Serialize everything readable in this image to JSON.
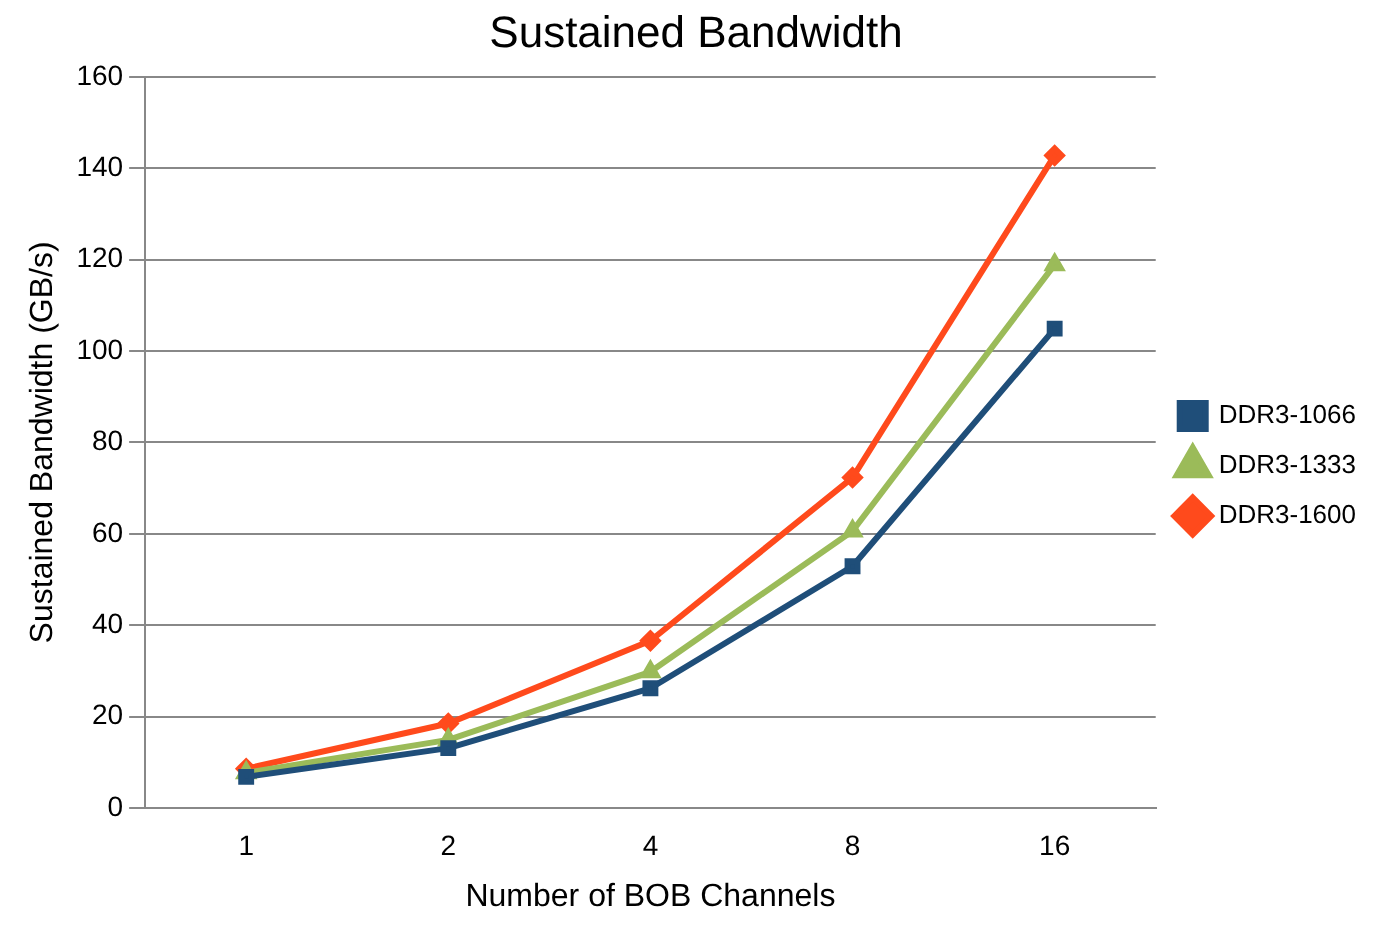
{
  "chart_data": {
    "type": "line",
    "title": "Sustained Bandwidth",
    "xlabel": "Number of BOB Channels",
    "ylabel": "Sustained Bandwidth (GB/s)",
    "categories": [
      "1",
      "2",
      "4",
      "8",
      "16"
    ],
    "series": [
      {
        "name": "DDR3-1066",
        "color": "#1f4e79",
        "marker": "square",
        "values": [
          6.8,
          13.1,
          26.2,
          52.9,
          104.9
        ]
      },
      {
        "name": "DDR3-1333",
        "color": "#9bbb59",
        "marker": "triangle",
        "values": [
          7.7,
          14.9,
          29.8,
          60.6,
          118.9
        ]
      },
      {
        "name": "DDR3-1600",
        "color": "#ff4a1c",
        "marker": "diamond",
        "values": [
          8.6,
          18.5,
          36.6,
          72.3,
          142.8
        ]
      }
    ],
    "ylim": [
      0,
      160
    ],
    "yticks": [
      0,
      20,
      40,
      60,
      80,
      100,
      120,
      140,
      160
    ],
    "grid": "y",
    "legend": "right"
  }
}
